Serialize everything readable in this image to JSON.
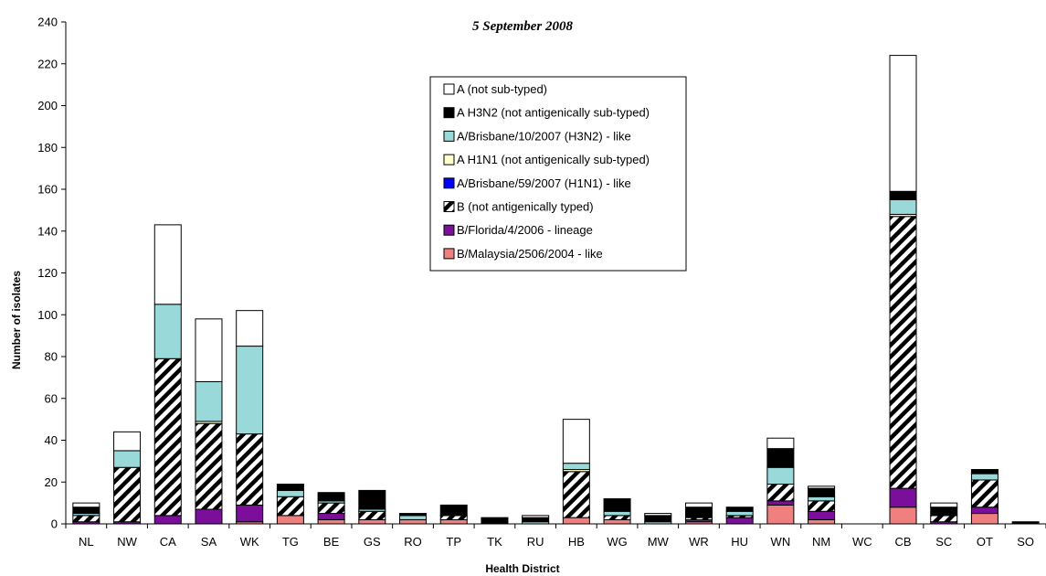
{
  "chart_data": {
    "type": "bar",
    "stacked": true,
    "title": "",
    "subtitle": "5 September 2008",
    "xlabel": "Health District",
    "ylabel": "Number of isolates",
    "ylim": [
      0,
      240
    ],
    "yticks": [
      0,
      20,
      40,
      60,
      80,
      100,
      120,
      140,
      160,
      180,
      200,
      220,
      240
    ],
    "grid": false,
    "legend_position": "top-center",
    "categories": [
      "NL",
      "NW",
      "CA",
      "SA",
      "WK",
      "TG",
      "BE",
      "GS",
      "RO",
      "TP",
      "TK",
      "RU",
      "HB",
      "WG",
      "MW",
      "WR",
      "HU",
      "WN",
      "NM",
      "WC",
      "CB",
      "SC",
      "OT",
      "SO"
    ],
    "series": [
      {
        "name": "B/Malaysia/2506/2004 - like",
        "color": "#f08080",
        "pattern": "solid",
        "values": [
          0,
          0,
          0,
          0,
          1,
          4,
          2,
          2,
          2,
          2,
          0,
          0,
          3,
          2,
          0,
          1,
          0,
          9,
          2,
          0,
          8,
          0,
          5,
          0
        ]
      },
      {
        "name": "B/Florida/4/2006 - lineage",
        "color": "#7b0f9c",
        "pattern": "solid",
        "values": [
          1,
          1,
          4,
          7,
          8,
          0,
          3,
          0,
          0,
          0,
          0,
          0,
          0,
          0,
          0,
          1,
          3,
          2,
          4,
          0,
          9,
          1,
          3,
          0
        ]
      },
      {
        "name": "B (not antigenically typed)",
        "color": "#000000",
        "pattern": "hatch",
        "values": [
          3,
          26,
          75,
          41,
          34,
          9,
          5,
          4,
          0,
          2,
          0,
          0,
          22,
          2,
          0,
          1,
          1,
          8,
          5,
          0,
          130,
          3,
          13,
          0
        ]
      },
      {
        "name": "A/Brisbane/59/2007 (H1N1) - like",
        "color": "#0000ff",
        "pattern": "solid",
        "values": [
          0,
          0,
          0,
          0,
          0,
          0,
          0,
          0,
          0,
          0,
          0,
          0,
          0,
          0,
          0,
          0,
          0,
          0,
          0,
          0,
          0,
          0,
          0,
          0
        ]
      },
      {
        "name": "A H1N1 (not antigenically sub-typed)",
        "color": "#ffffcc",
        "pattern": "solid",
        "values": [
          0,
          0,
          0,
          1,
          0,
          0,
          0,
          0,
          0,
          0,
          0,
          0,
          1,
          0,
          0,
          0,
          0,
          0,
          0,
          0,
          1,
          0,
          0,
          0
        ]
      },
      {
        "name": "A/Brisbane/10/2007 (H3N2) - like",
        "color": "#99d9d9",
        "pattern": "solid",
        "values": [
          1,
          8,
          26,
          19,
          42,
          3,
          1,
          1,
          2,
          0,
          0,
          1,
          3,
          2,
          1,
          0,
          2,
          8,
          2,
          0,
          7,
          0,
          3,
          0
        ]
      },
      {
        "name": "A H3N2 (not antigenically sub-typed)",
        "color": "#000000",
        "pattern": "solid",
        "values": [
          3,
          0,
          0,
          0,
          0,
          3,
          4,
          9,
          1,
          5,
          3,
          2,
          0,
          6,
          3,
          5,
          2,
          9,
          4,
          0,
          4,
          4,
          2,
          1
        ]
      },
      {
        "name": "A (not sub-typed)",
        "color": "#ffffff",
        "pattern": "solid",
        "values": [
          2,
          9,
          38,
          30,
          17,
          0,
          0,
          0,
          0,
          0,
          0,
          1,
          21,
          0,
          1,
          2,
          0,
          5,
          1,
          0,
          65,
          2,
          0,
          0
        ]
      }
    ],
    "legend_order": [
      "A (not sub-typed)",
      "A H3N2 (not antigenically sub-typed)",
      "A/Brisbane/10/2007 (H3N2) - like",
      "A H1N1 (not antigenically sub-typed)",
      "A/Brisbane/59/2007 (H1N1) - like",
      "B (not antigenically typed)",
      "B/Florida/4/2006 - lineage",
      "B/Malaysia/2506/2004 - like"
    ]
  }
}
